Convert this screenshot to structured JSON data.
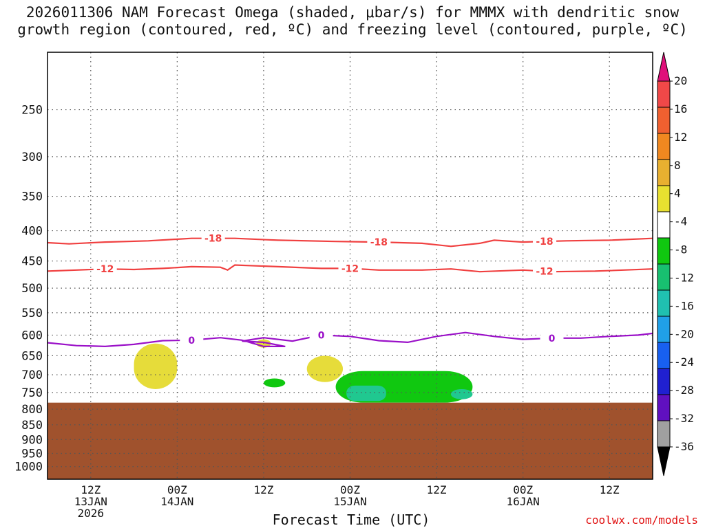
{
  "title": {
    "line1": "2026011306 NAM Forecast Omega (shaded, μbar/s) for MMMX with dendritic snow",
    "line2": "growth region (contoured, red, ºC) and freezing level (contoured, purple, ºC)"
  },
  "credit": "coolwx.com/models",
  "colors": {
    "dgz": "#f04040",
    "freezing": "#9a10c8",
    "terrain": "#a0522d",
    "grid": "#555555",
    "positive_omega": "#e6dc3a",
    "negative_omega_1": "#10c810",
    "negative_omega_2": "#20c890"
  },
  "chart_data": {
    "type": "heatmap",
    "title": "2026011306 NAM Forecast Omega (shaded, μbar/s) for MMMX with dendritic snow growth region (contoured, red, ºC) and freezing level (contoured, purple, ºC)",
    "xlabel": "Forecast Time (UTC)",
    "ylabel": "",
    "x_ticks": [
      {
        "hour": 6,
        "label1": "12Z",
        "label2": "13JAN",
        "label3": "2026"
      },
      {
        "hour": 18,
        "label1": "00Z",
        "label2": "14JAN",
        "label3": ""
      },
      {
        "hour": 30,
        "label1": "12Z",
        "label2": "",
        "label3": ""
      },
      {
        "hour": 42,
        "label1": "00Z",
        "label2": "15JAN",
        "label3": ""
      },
      {
        "hour": 54,
        "label1": "12Z",
        "label2": "",
        "label3": ""
      },
      {
        "hour": 66,
        "label1": "00Z",
        "label2": "16JAN",
        "label3": ""
      },
      {
        "hour": 78,
        "label1": "12Z",
        "label2": "",
        "label3": ""
      }
    ],
    "xlim_hours": [
      0,
      84
    ],
    "y_axis": "pressure (hPa), log scale, inverted",
    "ylim": [
      1050,
      200
    ],
    "y_ticks": [
      250,
      300,
      350,
      400,
      450,
      500,
      550,
      600,
      650,
      700,
      750,
      800,
      850,
      900,
      950,
      1000
    ],
    "grid": true,
    "surface_pressure": 780,
    "colorbar": {
      "labels": [
        "20",
        "16",
        "12",
        "8",
        "4",
        "-4",
        "-8",
        "-12",
        "-16",
        "-20",
        "-24",
        "-28",
        "-32",
        "-36"
      ],
      "colors": [
        "#f04848",
        "#f06030",
        "#f08820",
        "#e8b030",
        "#e8e030",
        "#ffffff",
        "#10c810",
        "#18c070",
        "#20c0b0",
        "#20a0e8",
        "#1860f0",
        "#2020d0",
        "#6010c0",
        "#a010c8",
        "#a0a0a0"
      ],
      "top_arrow": "#e0107a",
      "bottom_arrow": "#000000"
    },
    "contours": [
      {
        "name": "-18",
        "color": "red",
        "label": "-18",
        "points": [
          [
            0,
            419
          ],
          [
            3,
            421
          ],
          [
            8,
            418
          ],
          [
            14,
            416
          ],
          [
            20,
            412
          ],
          [
            26,
            412
          ],
          [
            32,
            415
          ],
          [
            40,
            417
          ],
          [
            46,
            418
          ],
          [
            52,
            420
          ],
          [
            56,
            425
          ],
          [
            60,
            420
          ],
          [
            62,
            415
          ],
          [
            66,
            418
          ],
          [
            72,
            416
          ],
          [
            78,
            415
          ],
          [
            84,
            412
          ]
        ],
        "label_hours": [
          23,
          46,
          69
        ]
      },
      {
        "name": "-12",
        "color": "red",
        "label": "-12",
        "points": [
          [
            0,
            468
          ],
          [
            4,
            466
          ],
          [
            8,
            464
          ],
          [
            12,
            465
          ],
          [
            16,
            463
          ],
          [
            20,
            460
          ],
          [
            24,
            461
          ],
          [
            25,
            466
          ],
          [
            26,
            457
          ],
          [
            32,
            460
          ],
          [
            38,
            463
          ],
          [
            42,
            463
          ],
          [
            46,
            466
          ],
          [
            52,
            466
          ],
          [
            56,
            464
          ],
          [
            60,
            469
          ],
          [
            66,
            466
          ],
          [
            70,
            469
          ],
          [
            76,
            468
          ],
          [
            84,
            464
          ]
        ],
        "label_hours": [
          8,
          42,
          69
        ]
      },
      {
        "name": "0",
        "color": "purple",
        "label": "0",
        "points": [
          [
            0,
            618
          ],
          [
            4,
            625
          ],
          [
            8,
            627
          ],
          [
            12,
            622
          ],
          [
            16,
            613
          ],
          [
            20,
            612
          ],
          [
            24,
            606
          ],
          [
            27,
            612
          ],
          [
            30,
            627
          ],
          [
            33,
            627
          ],
          [
            30,
            617
          ],
          [
            27,
            614
          ],
          [
            30,
            606
          ],
          [
            34,
            614
          ],
          [
            38,
            600
          ],
          [
            42,
            603
          ],
          [
            46,
            613
          ],
          [
            50,
            617
          ],
          [
            54,
            603
          ],
          [
            58,
            594
          ],
          [
            62,
            603
          ],
          [
            66,
            610
          ],
          [
            70,
            607
          ],
          [
            74,
            607
          ],
          [
            78,
            603
          ],
          [
            82,
            600
          ],
          [
            84,
            596
          ]
        ],
        "label_hours": [
          20,
          38,
          70
        ]
      }
    ],
    "omega_regions": [
      {
        "sign": "positive",
        "value_range": "4 to 8",
        "hours": [
          12,
          18
        ],
        "pressure": [
          620,
          740
        ]
      },
      {
        "sign": "positive",
        "value_range": "4 to 8",
        "hours": [
          29,
          31
        ],
        "pressure": [
          610,
          630
        ]
      },
      {
        "sign": "positive",
        "value_range": "4 to 8",
        "hours": [
          36,
          41
        ],
        "pressure": [
          650,
          720
        ]
      },
      {
        "sign": "negative",
        "value_range": "-4 to -8",
        "hours": [
          30,
          33
        ],
        "pressure": [
          710,
          735
        ]
      },
      {
        "sign": "negative",
        "value_range": "-4 to -12",
        "hours": [
          40,
          59
        ],
        "pressure": [
          690,
          780
        ]
      },
      {
        "sign": "negative",
        "value_range": "-12 to -16",
        "hours": [
          56,
          59
        ],
        "pressure": [
          740,
          770
        ]
      }
    ]
  }
}
